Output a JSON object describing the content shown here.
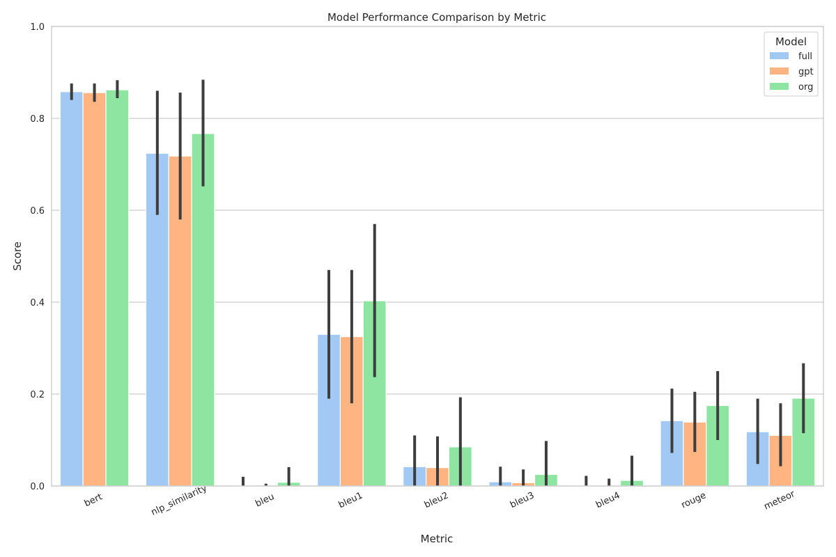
{
  "chart_data": {
    "type": "bar",
    "title": "Model Performance Comparison by Metric",
    "xlabel": "Metric",
    "ylabel": "Score",
    "ylim": [
      0,
      1
    ],
    "yticks": [
      "0.0",
      "0.2",
      "0.4",
      "0.6",
      "0.8",
      "1.0"
    ],
    "grid": "horizontal",
    "categories": [
      "bert",
      "nlp_similarity",
      "bleu",
      "bleu1",
      "bleu2",
      "bleu3",
      "bleu4",
      "rouge",
      "meteor"
    ],
    "legend": {
      "title": "Model",
      "position": "top-right"
    },
    "series": [
      {
        "name": "full",
        "color": "#a1c9f4",
        "values": [
          0.858,
          0.724,
          0.001,
          0.33,
          0.042,
          0.009,
          0.001,
          0.142,
          0.118
        ],
        "err_low": [
          0.84,
          0.59,
          0.0,
          0.19,
          0.0,
          0.0,
          0.0,
          0.072,
          0.048
        ],
        "err_high": [
          0.876,
          0.86,
          0.02,
          0.47,
          0.11,
          0.042,
          0.022,
          0.212,
          0.19
        ]
      },
      {
        "name": "gpt",
        "color": "#ffb482",
        "values": [
          0.856,
          0.718,
          0.0005,
          0.325,
          0.04,
          0.007,
          0.0005,
          0.139,
          0.11
        ],
        "err_low": [
          0.836,
          0.58,
          0.0,
          0.18,
          0.0,
          0.0,
          0.0,
          0.074,
          0.043
        ],
        "err_high": [
          0.876,
          0.856,
          0.005,
          0.47,
          0.108,
          0.036,
          0.016,
          0.205,
          0.18
        ]
      },
      {
        "name": "org",
        "color": "#8de5a1",
        "values": [
          0.862,
          0.767,
          0.008,
          0.403,
          0.085,
          0.025,
          0.012,
          0.175,
          0.191
        ],
        "err_low": [
          0.844,
          0.652,
          0.0,
          0.237,
          0.0,
          0.0,
          0.0,
          0.1,
          0.115
        ],
        "err_high": [
          0.883,
          0.884,
          0.041,
          0.57,
          0.193,
          0.098,
          0.066,
          0.25,
          0.267
        ]
      }
    ]
  }
}
